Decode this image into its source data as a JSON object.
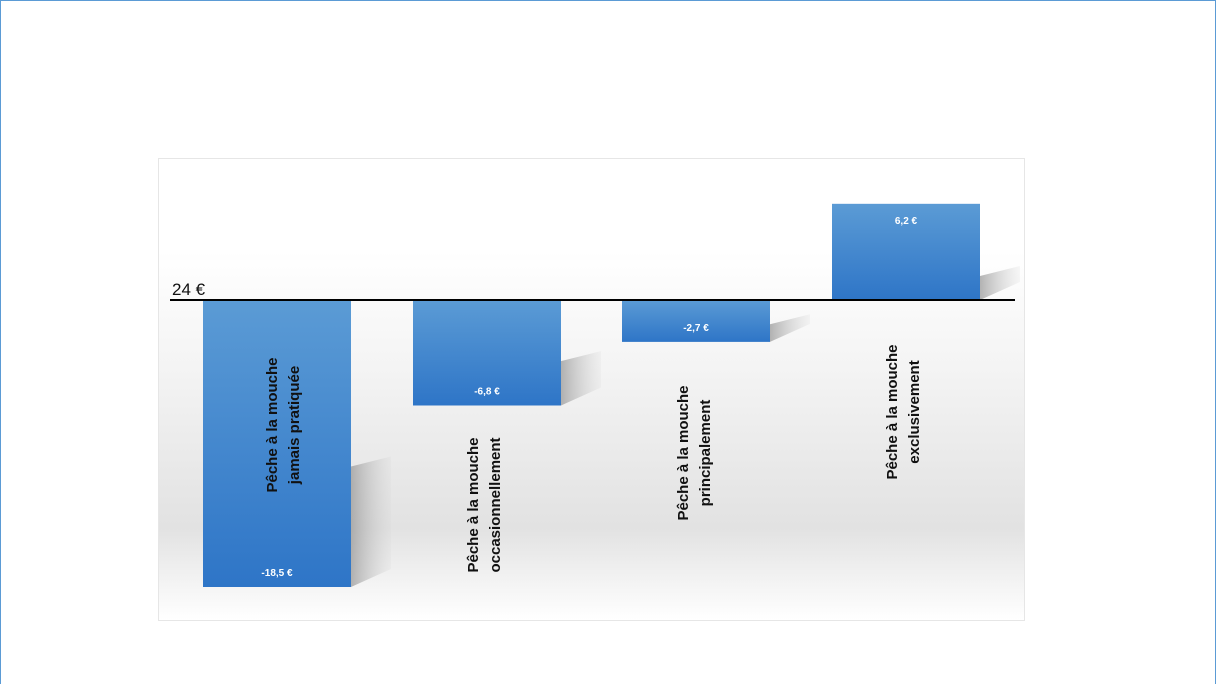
{
  "chart_data": {
    "type": "bar",
    "baseline_label": "24 €",
    "baseline_value": 24,
    "categories": [
      [
        "Pêche à la mouche",
        "jamais pratiquée"
      ],
      [
        "Pêche à la mouche",
        "occasionnellement"
      ],
      [
        "Pêche à la mouche",
        "principalement"
      ],
      [
        "Pêche à la mouche",
        "exclusivement"
      ]
    ],
    "values": [
      -18.5,
      -6.8,
      -2.7,
      6.2
    ],
    "value_labels": [
      "-18,5 €",
      "-6,8 €",
      "-2,7 €",
      "6,2 €"
    ],
    "ylim": [
      -18.5,
      6.2
    ],
    "colors": {
      "bar_top": "#5b9bd5",
      "bar_bottom": "#2e75c7",
      "baseline": "#000000"
    },
    "legend": "none",
    "grid": false
  }
}
